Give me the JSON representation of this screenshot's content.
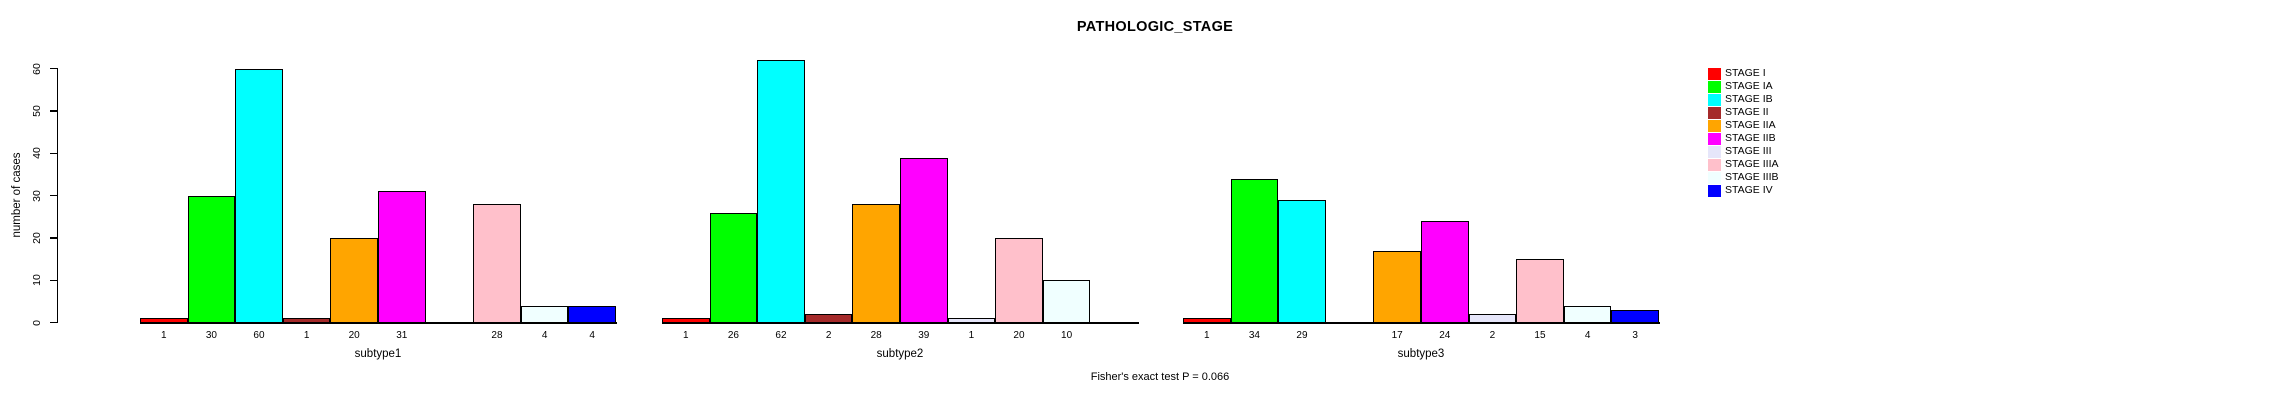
{
  "chart_data": {
    "type": "bar",
    "title": "PATHOLOGIC_STAGE",
    "ylabel": "number of cases",
    "xlabel": "",
    "ylim": [
      0,
      60
    ],
    "yticks": [
      0,
      10,
      20,
      30,
      40,
      50,
      60
    ],
    "grid": false,
    "legend_position": "right",
    "bar_labels_shown": true,
    "zero_value_slots_empty": true,
    "categories": [
      "STAGE I",
      "STAGE IA",
      "STAGE IB",
      "STAGE II",
      "STAGE IIA",
      "STAGE IIB",
      "STAGE III",
      "STAGE IIIA",
      "STAGE IIIB",
      "STAGE IV"
    ],
    "category_colors": [
      "#FF0000",
      "#00FF00",
      "#00FFFF",
      "#A52A2A",
      "#FFA500",
      "#FF00FF",
      "#E6E6FA",
      "#FFC0CB",
      "#F0FFFF",
      "#0000FF"
    ],
    "groups": [
      {
        "label": "subtype1",
        "values": [
          1,
          30,
          60,
          1,
          20,
          31,
          0,
          28,
          4,
          4
        ]
      },
      {
        "label": "subtype2",
        "values": [
          1,
          26,
          62,
          2,
          28,
          39,
          1,
          20,
          10,
          0
        ]
      },
      {
        "label": "subtype3",
        "values": [
          1,
          34,
          29,
          0,
          17,
          24,
          2,
          15,
          4,
          3
        ]
      }
    ],
    "annotation": "Fisher's exact test P = 0.066"
  }
}
